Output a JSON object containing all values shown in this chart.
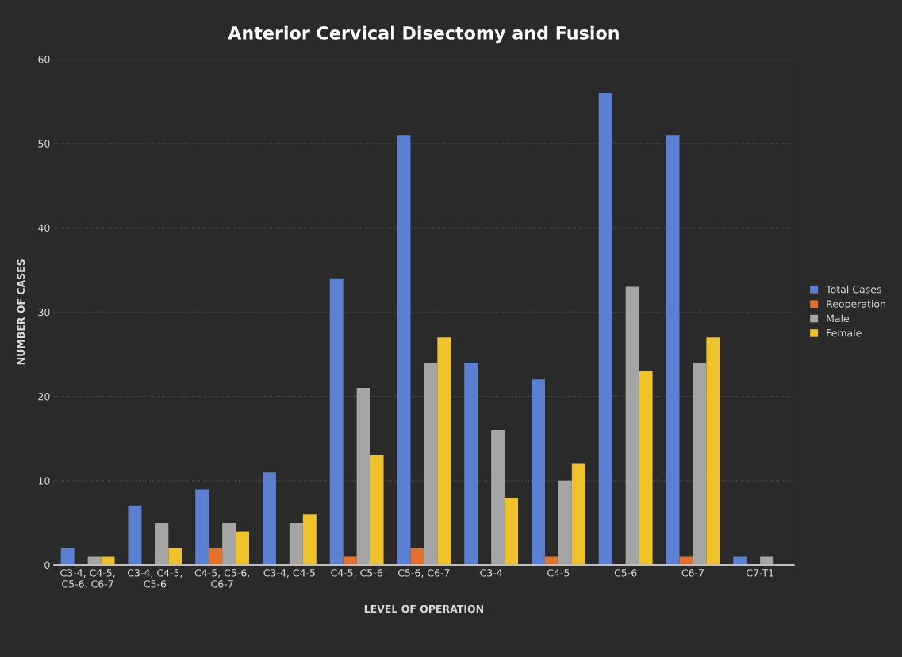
{
  "chart_data": {
    "type": "bar",
    "title": "Anterior Cervical Disectomy and Fusion",
    "xlabel": "LEVEL OF OPERATION",
    "ylabel": "NUMBER OF CASES",
    "categories": [
      "C3-4, C4-5, C5-6, C6-7",
      "C3-4, C4-5, C5-6",
      "C4-5, C5-6, C6-7",
      "C3-4, C4-5",
      "C4-5, C5-6",
      "C5-6, C6-7",
      "C3-4",
      "C4-5",
      "C5-6",
      "C6-7",
      "C7-T1"
    ],
    "series": [
      {
        "name": "Total Cases",
        "color": "#5b80d2",
        "values": [
          2,
          7,
          9,
          11,
          34,
          51,
          24,
          22,
          56,
          51,
          1
        ]
      },
      {
        "name": "Reoperation",
        "color": "#e2712b",
        "values": [
          0,
          0,
          2,
          0,
          1,
          2,
          0,
          1,
          0,
          1,
          0
        ]
      },
      {
        "name": "Male",
        "color": "#a5a5a5",
        "values": [
          1,
          5,
          5,
          5,
          21,
          24,
          16,
          10,
          33,
          24,
          1
        ]
      },
      {
        "name": "Female",
        "color": "#eec22a",
        "values": [
          1,
          2,
          4,
          6,
          13,
          27,
          8,
          12,
          23,
          27,
          0
        ]
      }
    ],
    "ylim": [
      0,
      60
    ],
    "yticks": [
      0,
      10,
      20,
      30,
      40,
      50,
      60
    ],
    "grid": "y",
    "legend": "right"
  }
}
